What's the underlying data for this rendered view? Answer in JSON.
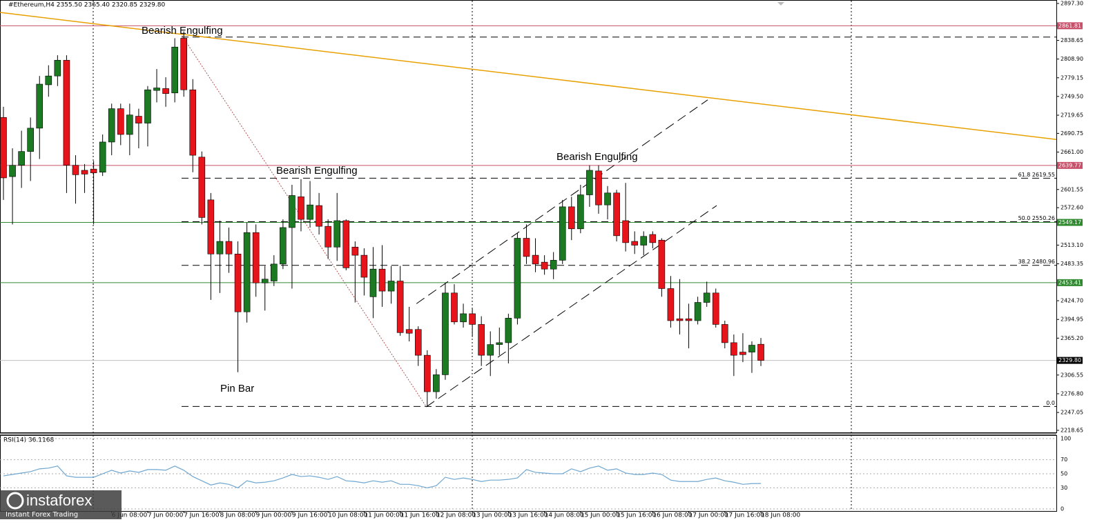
{
  "chart_data": {
    "type": "candlestick",
    "title": "#Ethereum,H4  2355.50 2365.40 2320.85 2329.80",
    "categories": [
      null,
      null,
      null,
      null,
      null,
      null,
      null,
      null,
      null,
      null,
      null,
      null,
      "6 Jun 08:00",
      null,
      null,
      null,
      "7 Jun 00:00",
      null,
      null,
      null,
      "7 Jun 16:00",
      null,
      null,
      null,
      "8 Jun 08:00",
      null,
      null,
      null,
      "9 Jun 00:00",
      null,
      null,
      null,
      "9 Jun 16:00",
      null,
      null,
      null,
      "10 Jun 08:00",
      null,
      null,
      null,
      "11 Jun 00:00",
      null,
      null,
      null,
      "11 Jun 16:00",
      null,
      null,
      null,
      "12 Jun 08:00",
      null,
      null,
      null,
      "13 Jun 00:00",
      null,
      null,
      null,
      "13 Jun 16:00",
      null,
      null,
      null,
      "14 Jun 08:00",
      null,
      null,
      null,
      "15 Jun 00:00",
      null,
      null,
      null,
      "15 Jun 16:00",
      null,
      null,
      null,
      "16 Jun 08:00",
      null,
      null,
      null,
      "17 Jun 00:00",
      null,
      null,
      null,
      "17 Jun 16:00",
      null,
      null,
      null,
      "18 Jun 08:00"
    ],
    "open": [
      2716,
      2622,
      2640,
      2662,
      2699,
      2768,
      2782,
      2807,
      2640,
      2632,
      2634,
      2629,
      2677,
      2730,
      2689,
      2718,
      2707,
      2759,
      2762,
      2755,
      2842,
      2760,
      2653,
      2585,
      2499,
      2519,
      2499,
      2407,
      2533,
      2453,
      2456,
      2483,
      2541,
      2590,
      2554,
      2576,
      2543,
      2510,
      2552,
      2510,
      2497,
      2431,
      2475,
      2440,
      2456,
      2379,
      2379,
      2338,
      2280,
      2307,
      2437,
      2391,
      2404,
      2387,
      2338,
      2355,
      2358,
      2397,
      2524,
      2497,
      2486,
      2475,
      2489,
      2574,
      2539,
      2593,
      2631,
      2577,
      2596,
      2552,
      2519,
      2513,
      2530,
      2521,
      2444,
      2396,
      2396,
      2393,
      2422,
      2437,
      2387,
      2358,
      2343,
      2343,
      2355.5
    ],
    "high": [
      2733,
      2667,
      2695,
      2716,
      2782,
      2799,
      2815,
      2815,
      2656,
      2642,
      2647,
      2689,
      2738,
      2738,
      2738,
      2730,
      2766,
      2793,
      2780,
      2842,
      2853,
      2777,
      2662,
      2596,
      2552,
      2541,
      2519,
      2549,
      2546,
      2480,
      2497,
      2554,
      2609,
      2618,
      2615,
      2596,
      2554,
      2596,
      2554,
      2519,
      2508,
      2510,
      2513,
      2480,
      2480,
      2415,
      2384,
      2346,
      2316,
      2453,
      2451,
      2420,
      2412,
      2400,
      2376,
      2382,
      2404,
      2532,
      2546,
      2524,
      2497,
      2502,
      2585,
      2590,
      2609,
      2640,
      2640,
      2607,
      2601,
      2612,
      2535,
      2535,
      2535,
      2524,
      2464,
      2459,
      2420,
      2431,
      2455,
      2444,
      2393,
      2371,
      2373,
      2360,
      2365.4
    ],
    "low": [
      2585,
      2546,
      2604,
      2615,
      2650,
      2749,
      2766,
      2596,
      2579,
      2596,
      2546,
      2623,
      2656,
      2672,
      2656,
      2667,
      2670,
      2740,
      2733,
      2740,
      2749,
      2629,
      2546,
      2426,
      2437,
      2469,
      2311,
      2390,
      2431,
      2409,
      2448,
      2475,
      2444,
      2535,
      2541,
      2530,
      2491,
      2488,
      2473,
      2422,
      2433,
      2397,
      2415,
      2420,
      2369,
      2360,
      2321,
      2256,
      2269,
      2299,
      2387,
      2382,
      2367,
      2321,
      2305,
      2338,
      2325,
      2387,
      2483,
      2470,
      2466,
      2459,
      2483,
      2521,
      2532,
      2574,
      2563,
      2554,
      2519,
      2503,
      2499,
      2497,
      2508,
      2431,
      2382,
      2371,
      2349,
      2387,
      2415,
      2382,
      2349,
      2305,
      2327,
      2310,
      2320.85
    ],
    "close": [
      2620,
      2640,
      2662,
      2699,
      2769,
      2782,
      2807,
      2640,
      2625,
      2626,
      2628,
      2677,
      2730,
      2689,
      2720,
      2707,
      2760,
      2763,
      2754,
      2828,
      2760,
      2656,
      2557,
      2499,
      2519,
      2499,
      2407,
      2533,
      2453,
      2459,
      2483,
      2541,
      2592,
      2554,
      2577,
      2543,
      2510,
      2552,
      2477,
      2497,
      2462,
      2475,
      2440,
      2456,
      2374,
      2373,
      2338,
      2280,
      2307,
      2437,
      2391,
      2404,
      2387,
      2338,
      2355,
      2358,
      2397,
      2524,
      2495,
      2483,
      2475,
      2489,
      2574,
      2539,
      2593,
      2632,
      2577,
      2596,
      2528,
      2517,
      2513,
      2527,
      2517,
      2444,
      2393,
      2393,
      2393,
      2422,
      2437,
      2387,
      2358,
      2338,
      2339,
      2354,
      2329.8
    ],
    "up_color": "#1b7a22",
    "down_color": "#e8141b",
    "ylim": [
      2218.65,
      2897.3
    ],
    "yticks": [
      {
        "value": 2897.3,
        "label": "2897.30"
      },
      {
        "value": 2838.65,
        "label": "2838.65"
      },
      {
        "value": 2808.9,
        "label": "2808.90"
      },
      {
        "value": 2779.15,
        "label": "2779.15"
      },
      {
        "value": 2749.5,
        "label": "2749.50"
      },
      {
        "value": 2719.65,
        "label": "2719.65"
      },
      {
        "value": 2690.75,
        "label": "2690.75"
      },
      {
        "value": 2661.0,
        "label": "2661.00"
      },
      {
        "value": 2601.55,
        "label": "2601.55"
      },
      {
        "value": 2572.6,
        "label": "2572.60"
      },
      {
        "value": 2513.1,
        "label": "2513.10"
      },
      {
        "value": 2483.35,
        "label": "2483.35"
      },
      {
        "value": 2424.7,
        "label": "2424.70"
      },
      {
        "value": 2394.95,
        "label": "2394.95"
      },
      {
        "value": 2365.2,
        "label": "2365.20"
      },
      {
        "value": 2306.55,
        "label": "2306.55"
      },
      {
        "value": 2276.8,
        "label": "2276.80"
      },
      {
        "value": 2247.05,
        "label": "2247.05"
      },
      {
        "value": 2218.65,
        "label": "2218.65"
      }
    ],
    "levels": [
      {
        "value": 2861.81,
        "color": "#c8506a"
      },
      {
        "value": 2639.77,
        "color": "#c8506a"
      },
      {
        "value": 2549.17,
        "color": "#2f8a2f"
      },
      {
        "value": 2453.41,
        "color": "#2f8a2f"
      },
      {
        "value": 2329.8,
        "label": "2329.80",
        "color": "#000000"
      }
    ],
    "fibonacci": {
      "values": [
        2843.86,
        2619.55,
        2550.26,
        2480.96,
        2256.66
      ],
      "labels": [
        null,
        "61.8 2619.55",
        "50.0 2550.26",
        "38.2 2480.96",
        "0.0"
      ]
    },
    "drawn_lines": [
      {
        "color": "#e8a000",
        "style": "solid",
        "points": [
          [
            -0.38,
            2883
          ],
          [
            116.8,
            2681
          ]
        ]
      },
      {
        "color": "#000000",
        "style": "dash",
        "points": [
          [
            45.8,
            2420
          ],
          [
            78.1,
            2744
          ]
        ]
      },
      {
        "color": "#000000",
        "style": "dash",
        "points": [
          [
            46.9,
            2256
          ],
          [
            79.1,
            2576
          ]
        ]
      },
      {
        "color": "#b05050",
        "style": "dot",
        "points": [
          [
            19.8,
            2846
          ],
          [
            46.9,
            2256
          ]
        ]
      }
    ],
    "annotations": [
      "Bearish Engulfing",
      "Bearish Engulfing",
      "Bearish Engulfing",
      "Pin Bar"
    ],
    "rsi": {
      "title": "RSI(14) 36.1168",
      "color": "#6ea6d0",
      "ylim": [
        0,
        100
      ],
      "yticks": [
        100,
        70,
        50,
        30,
        0
      ],
      "values": [
        47,
        49,
        51,
        53,
        57,
        58,
        61,
        47,
        45,
        45,
        45,
        50,
        55,
        51,
        54,
        52,
        56,
        56,
        55,
        61,
        55,
        46,
        40,
        34,
        37,
        35,
        30,
        40,
        37,
        38,
        40,
        44,
        49,
        46,
        47,
        45,
        42,
        46,
        40,
        39,
        37,
        40,
        38,
        40,
        35,
        35,
        33,
        30,
        33,
        45,
        42,
        44,
        42,
        39,
        41,
        41,
        42,
        44,
        56,
        52,
        51,
        50,
        50,
        57,
        53,
        58,
        61,
        55,
        57,
        51,
        49,
        49,
        51,
        49,
        41,
        39,
        39,
        39,
        42,
        44,
        40,
        38,
        35,
        36,
        36.1168
      ]
    },
    "watermark": {
      "brand": "instaforex",
      "tagline": "Instant Forex Trading"
    }
  }
}
